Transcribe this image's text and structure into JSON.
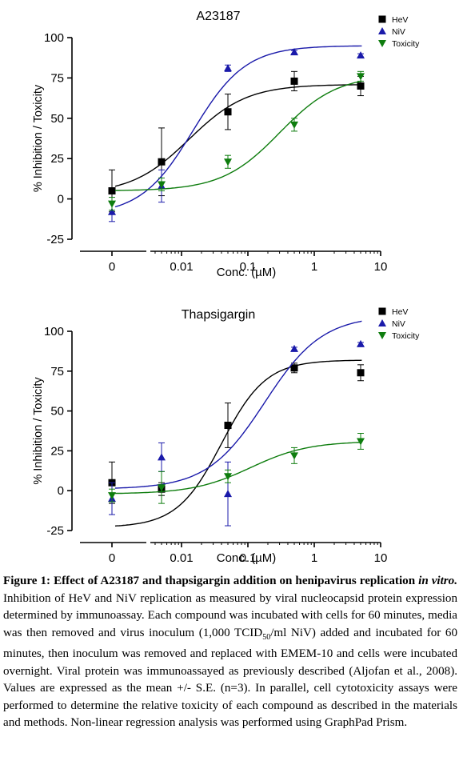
{
  "chart_data": [
    {
      "type": "scatter",
      "title": "A23187",
      "xlabel": "Conc. (µM)",
      "ylabel": "% Inhibition / Toxicity",
      "xscale": "log",
      "ylim": [
        -25,
        100
      ],
      "yticks": [
        "100",
        "75",
        "50",
        "25",
        "0",
        "-25"
      ],
      "xticks": [
        "0",
        "0.01",
        "0.1",
        "1",
        "10"
      ],
      "grid": false,
      "legend_position": "top-right",
      "series": [
        {
          "name": "HeV",
          "marker": "square",
          "color": "#000000",
          "x": [
            0.001,
            0.005,
            0.05,
            0.5,
            5
          ],
          "y": [
            5,
            23,
            54,
            73,
            70
          ],
          "err": [
            13,
            21,
            11,
            6,
            6
          ],
          "fit": {
            "bottom": 3,
            "top": 71,
            "ec50": 0.013,
            "hill": 1
          }
        },
        {
          "name": "NiV",
          "marker": "triangle-up",
          "color": "#1a1aaa",
          "x": [
            0.001,
            0.005,
            0.05,
            0.5,
            5
          ],
          "y": [
            -8,
            8,
            81,
            91,
            89
          ],
          "err": [
            6,
            10,
            2,
            1,
            1
          ],
          "fit": {
            "bottom": -10,
            "top": 95,
            "ec50": 0.015,
            "hill": 1.1
          }
        },
        {
          "name": "Toxicity",
          "marker": "triangle-down",
          "color": "#0e7d0e",
          "x": [
            0.001,
            0.005,
            0.05,
            0.5,
            5
          ],
          "y": [
            -3,
            9,
            23,
            46,
            76
          ],
          "err": [
            4,
            4,
            4,
            4,
            3
          ],
          "fit": {
            "bottom": 5,
            "top": 77,
            "ec50": 0.3,
            "hill": 1
          }
        }
      ]
    },
    {
      "type": "scatter",
      "title": "Thapsigargin",
      "xlabel": "Conc. (µM)",
      "ylabel": "% Inhibition / Toxicity",
      "xscale": "log",
      "ylim": [
        -25,
        100
      ],
      "yticks": [
        "100",
        "75",
        "50",
        "25",
        "0",
        "-25"
      ],
      "xticks": [
        "0",
        "0.01",
        "0.1",
        "1",
        "10"
      ],
      "grid": false,
      "legend_position": "top-right",
      "series": [
        {
          "name": "HeV",
          "marker": "square",
          "color": "#000000",
          "x": [
            0.001,
            0.005,
            0.05,
            0.5,
            5
          ],
          "y": [
            5,
            1,
            41,
            77,
            74
          ],
          "err": [
            13,
            4,
            14,
            3,
            5
          ],
          "fit": {
            "bottom": -23,
            "top": 82,
            "ec50": 0.04,
            "hill": 1.3
          }
        },
        {
          "name": "NiV",
          "marker": "triangle-up",
          "color": "#1a1aaa",
          "x": [
            0.001,
            0.005,
            0.05,
            0.5,
            5
          ],
          "y": [
            -5,
            21,
            -2,
            89,
            92
          ],
          "err": [
            10,
            9,
            20,
            1,
            1
          ],
          "fit": {
            "bottom": 1,
            "top": 110,
            "ec50": 0.18,
            "hill": 1
          }
        },
        {
          "name": "Toxicity",
          "marker": "triangle-down",
          "color": "#0e7d0e",
          "x": [
            0.001,
            0.005,
            0.05,
            0.5,
            5
          ],
          "y": [
            -3,
            2,
            9,
            22,
            31
          ],
          "err": [
            4,
            10,
            4,
            5,
            5
          ],
          "fit": {
            "bottom": -2,
            "top": 31,
            "ec50": 0.11,
            "hill": 1
          }
        }
      ]
    }
  ],
  "caption": {
    "figure_label": "Figure 1:",
    "bold_title": " Effect of A23187 and thapsigargin addition on henipavirus replication",
    "bold_italic": " in vitro.",
    "body_part1": " Inhibition of HeV and NiV replication as measured by viral nucleocapsid protein expression determined by immunoassay. Each compound was incubated with cells for 60 minutes, media was then removed and virus inoculum (1,000 TCID",
    "subscript": "50",
    "body_part2": "/ml NiV) added and incubated for 60 minutes, then inoculum was removed and replaced with EMEM-10 and cells were incubated overnight. Viral protein was immunoassayed as previously described (Aljofan et al., 2008). Values are expressed as the mean +/- S.E. (n=3). In parallel, cell cytotoxicity assays were performed to determine the relative toxicity of each compound as described in the materials and methods. Non-linear regression analysis was performed using GraphPad Prism."
  }
}
